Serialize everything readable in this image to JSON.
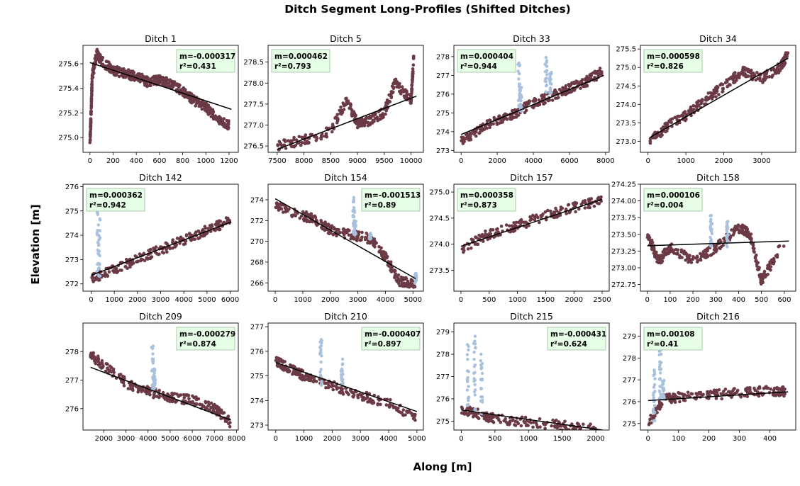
{
  "figure": {
    "title": "Ditch Segment Long-Profiles (Shifted Ditches)",
    "xlabel": "Along [m]",
    "ylabel": "Elevation [m]"
  },
  "colors": {
    "points": "#6b3a44",
    "outliers": "#a9c1dd",
    "fit": "#000000",
    "box_bg": "#e6fde6",
    "box_border": "#9bbf9b"
  },
  "chart_data": [
    {
      "type": "scatter",
      "title": "Ditch 1",
      "stats": {
        "m": "m=-0.000317",
        "r2": "r²=0.431"
      },
      "xlim": [
        -60,
        1280
      ],
      "ylim": [
        274.88,
        275.75
      ],
      "xticks": [
        0,
        200,
        400,
        600,
        800,
        1000,
        1200
      ],
      "yticks": [
        275.0,
        275.2,
        275.4,
        275.6
      ],
      "fit": [
        [
          0,
          275.61
        ],
        [
          1220,
          275.23
        ]
      ],
      "series": [
        [
          [
            0,
            274.95
          ],
          [
            10,
            275.2
          ],
          [
            20,
            275.5
          ],
          [
            60,
            275.68
          ],
          [
            100,
            275.62
          ],
          [
            200,
            275.55
          ],
          [
            300,
            275.52
          ],
          [
            400,
            275.5
          ],
          [
            500,
            275.45
          ],
          [
            600,
            275.47
          ],
          [
            700,
            275.44
          ],
          [
            800,
            275.38
          ],
          [
            900,
            275.3
          ],
          [
            1000,
            275.25
          ],
          [
            1100,
            275.15
          ],
          [
            1200,
            275.1
          ]
        ]
      ],
      "outliers": []
    },
    {
      "type": "scatter",
      "title": "Ditch 5",
      "stats": {
        "m": "m=0.000462",
        "r2": "r²=0.793"
      },
      "xlim": [
        7330,
        10230
      ],
      "ylim": [
        276.35,
        278.9
      ],
      "xticks": [
        7500,
        8000,
        8500,
        9000,
        9500,
        10000
      ],
      "yticks": [
        276.5,
        277.0,
        277.5,
        278.0,
        278.5
      ],
      "fit": [
        [
          7500,
          276.42
        ],
        [
          10100,
          277.69
        ]
      ],
      "series": [
        [
          [
            7500,
            276.5
          ],
          [
            8000,
            276.65
          ],
          [
            8500,
            276.85
          ],
          [
            8800,
            277.6
          ],
          [
            9000,
            277.05
          ],
          [
            9200,
            277.1
          ],
          [
            9500,
            277.3
          ],
          [
            9700,
            278.0
          ],
          [
            10000,
            277.6
          ],
          [
            10050,
            278.6
          ]
        ]
      ],
      "outliers": []
    },
    {
      "type": "scatter",
      "title": "Ditch 33",
      "stats": {
        "m": "m=0.000404",
        "r2": "r²=0.944"
      },
      "xlim": [
        -400,
        8200
      ],
      "ylim": [
        272.9,
        278.6
      ],
      "xticks": [
        0,
        2000,
        4000,
        6000,
        8000
      ],
      "yticks": [
        273,
        274,
        275,
        276,
        277,
        278
      ],
      "fit": [
        [
          0,
          273.85
        ],
        [
          7900,
          277.0
        ]
      ],
      "series": [
        [
          [
            0,
            273.5
          ],
          [
            1000,
            274.1
          ],
          [
            2000,
            274.6
          ],
          [
            3000,
            275.0
          ],
          [
            4000,
            275.5
          ],
          [
            5000,
            275.9
          ],
          [
            6000,
            276.3
          ],
          [
            7000,
            276.7
          ],
          [
            7800,
            277.2
          ]
        ]
      ],
      "outliers": [
        [
          3200,
          278.0
        ],
        [
          3300,
          276.5
        ],
        [
          4700,
          278.0
        ],
        [
          4950,
          277.2
        ]
      ]
    },
    {
      "type": "scatter",
      "title": "Ditch 34",
      "stats": {
        "m": "m=0.000598",
        "r2": "r²=0.826"
      },
      "xlim": [
        -200,
        3900
      ],
      "ylim": [
        272.7,
        275.6
      ],
      "xticks": [
        0,
        1000,
        2000,
        3000
      ],
      "yticks": [
        273.0,
        273.5,
        274.0,
        274.5,
        275.0,
        275.5
      ],
      "fit": [
        [
          50,
          273.1
        ],
        [
          3700,
          275.25
        ]
      ],
      "series": [
        [
          [
            50,
            273.0
          ],
          [
            500,
            273.4
          ],
          [
            1000,
            273.7
          ],
          [
            1500,
            274.1
          ],
          [
            2000,
            274.5
          ],
          [
            2500,
            274.9
          ],
          [
            3000,
            274.7
          ],
          [
            3500,
            275.0
          ],
          [
            3700,
            275.4
          ]
        ]
      ],
      "outliers": []
    },
    {
      "type": "scatter",
      "title": "Ditch 142",
      "stats": {
        "m": "m=0.000362",
        "r2": "r²=0.942"
      },
      "xlim": [
        -350,
        6350
      ],
      "ylim": [
        271.7,
        276.1
      ],
      "xticks": [
        0,
        1000,
        2000,
        3000,
        4000,
        5000,
        6000
      ],
      "yticks": [
        272,
        273,
        274,
        275,
        276
      ],
      "fit": [
        [
          0,
          272.35
        ],
        [
          6050,
          274.55
        ]
      ],
      "series": [
        [
          [
            0,
            272.2
          ],
          [
            1000,
            272.6
          ],
          [
            2000,
            273.0
          ],
          [
            3000,
            273.4
          ],
          [
            4000,
            273.8
          ],
          [
            5000,
            274.2
          ],
          [
            6000,
            274.6
          ]
        ]
      ],
      "outliers": [
        [
          300,
          275.5
        ],
        [
          350,
          274.8
        ]
      ]
    },
    {
      "type": "scatter",
      "title": "Ditch 154",
      "stats": {
        "m": "m=-0.001513",
        "r2": "r²=0.89"
      },
      "xlim": [
        -260,
        5380
      ],
      "ylim": [
        265.2,
        275.5
      ],
      "xticks": [
        0,
        1000,
        2000,
        3000,
        4000,
        5000
      ],
      "yticks": [
        266,
        268,
        270,
        272,
        274
      ],
      "fit": [
        [
          0,
          274.1
        ],
        [
          5100,
          266.4
        ]
      ],
      "series": [
        [
          [
            0,
            273.4
          ],
          [
            1000,
            272.5
          ],
          [
            1500,
            272.0
          ],
          [
            2000,
            271.1
          ],
          [
            2800,
            270.6
          ],
          [
            3500,
            270.2
          ],
          [
            4000,
            268.5
          ],
          [
            4500,
            266.2
          ],
          [
            5100,
            265.9
          ]
        ]
      ],
      "outliers": [
        [
          2850,
          274.5
        ],
        [
          2900,
          272.0
        ],
        [
          3450,
          270.8
        ],
        [
          5100,
          267.0
        ]
      ]
    },
    {
      "type": "scatter",
      "title": "Ditch 157",
      "stats": {
        "m": "m=0.000358",
        "r2": "r²=0.873"
      },
      "xlim": [
        -125,
        2625
      ],
      "ylim": [
        273.1,
        275.15
      ],
      "xticks": [
        0,
        500,
        1000,
        1500,
        2000,
        2500
      ],
      "yticks": [
        273.5,
        274.0,
        274.5,
        275.0
      ],
      "fit": [
        [
          0,
          273.96
        ],
        [
          2500,
          274.86
        ]
      ],
      "series": [
        [
          [
            0,
            273.9
          ],
          [
            500,
            274.2
          ],
          [
            1000,
            274.35
          ],
          [
            1500,
            274.55
          ],
          [
            2000,
            274.7
          ],
          [
            2500,
            274.85
          ]
        ]
      ],
      "outliers": []
    },
    {
      "type": "scatter",
      "title": "Ditch 158",
      "stats": {
        "m": "m=0.000106",
        "r2": "r²=0.004"
      },
      "xlim": [
        -30,
        650
      ],
      "ylim": [
        272.65,
        274.25
      ],
      "xticks": [
        0,
        100,
        200,
        300,
        400,
        500,
        600
      ],
      "yticks": [
        272.75,
        273.0,
        273.25,
        273.5,
        273.75,
        274.0,
        274.25
      ],
      "fit": [
        [
          0,
          273.33
        ],
        [
          620,
          273.4
        ]
      ],
      "series": [
        [
          [
            0,
            273.5
          ],
          [
            50,
            273.1
          ],
          [
            100,
            273.3
          ],
          [
            200,
            273.1
          ],
          [
            300,
            273.3
          ],
          [
            400,
            273.6
          ],
          [
            450,
            273.5
          ],
          [
            500,
            272.8
          ],
          [
            600,
            273.4
          ]
        ]
      ],
      "outliers": [
        [
          280,
          273.8
        ],
        [
          350,
          273.7
        ]
      ]
    },
    {
      "type": "scatter",
      "title": "Ditch 209",
      "stats": {
        "m": "m=-0.000279",
        "r2": "r²=0.874"
      },
      "xlim": [
        1060,
        8080
      ],
      "ylim": [
        275.25,
        279.0
      ],
      "xticks": [
        2000,
        3000,
        4000,
        5000,
        6000,
        7000,
        8000
      ],
      "yticks": [
        276,
        277,
        278
      ],
      "fit": [
        [
          1400,
          277.45
        ],
        [
          7750,
          275.6
        ]
      ],
      "series": [
        [
          [
            1400,
            277.9
          ],
          [
            2000,
            277.5
          ],
          [
            3000,
            276.9
          ],
          [
            4000,
            276.6
          ],
          [
            5000,
            276.4
          ],
          [
            6000,
            276.3
          ],
          [
            7000,
            276.0
          ],
          [
            7750,
            275.5
          ]
        ]
      ],
      "outliers": [
        [
          4200,
          278.2
        ],
        [
          4300,
          277.4
        ]
      ]
    },
    {
      "type": "scatter",
      "title": "Ditch 210",
      "stats": {
        "m": "m=-0.000407",
        "r2": "r²=0.897"
      },
      "xlim": [
        -270,
        5230
      ],
      "ylim": [
        272.8,
        277.15
      ],
      "xticks": [
        0,
        1000,
        2000,
        3000,
        4000,
        5000
      ],
      "yticks": [
        273,
        274,
        275,
        276,
        277
      ],
      "fit": [
        [
          0,
          275.55
        ],
        [
          5000,
          273.55
        ]
      ],
      "series": [
        [
          [
            0,
            275.6
          ],
          [
            500,
            275.3
          ],
          [
            1000,
            275.0
          ],
          [
            2000,
            274.6
          ],
          [
            3000,
            274.2
          ],
          [
            4000,
            273.9
          ],
          [
            5000,
            273.3
          ]
        ]
      ],
      "outliers": [
        [
          1600,
          276.5
        ],
        [
          2350,
          275.8
        ]
      ]
    },
    {
      "type": "scatter",
      "title": "Ditch 215",
      "stats": {
        "m": "m=-0.000431",
        "r2": "r²=0.624"
      },
      "xlim": [
        -110,
        2200
      ],
      "ylim": [
        274.6,
        279.4
      ],
      "xticks": [
        0,
        500,
        1000,
        1500,
        2000
      ],
      "yticks": [
        275,
        276,
        277,
        278,
        279
      ],
      "fit": [
        [
          0,
          275.5
        ],
        [
          2100,
          274.6
        ]
      ],
      "series": [
        [
          [
            0,
            275.5
          ],
          [
            300,
            275.3
          ],
          [
            500,
            275.1
          ],
          [
            1000,
            274.95
          ],
          [
            1500,
            274.8
          ],
          [
            2000,
            274.7
          ]
        ]
      ],
      "outliers": [
        [
          100,
          278.5
        ],
        [
          200,
          279.0
        ],
        [
          300,
          278.0
        ]
      ]
    },
    {
      "type": "scatter",
      "title": "Ditch 216",
      "stats": {
        "m": "m=0.00108",
        "r2": "r²=0.41"
      },
      "xlim": [
        -25,
        485
      ],
      "ylim": [
        274.7,
        279.6
      ],
      "xticks": [
        0,
        100,
        200,
        300,
        400
      ],
      "yticks": [
        275,
        276,
        277,
        278,
        279
      ],
      "fit": [
        [
          0,
          276.05
        ],
        [
          460,
          276.45
        ]
      ],
      "series": [
        [
          [
            0,
            275.0
          ],
          [
            50,
            276.1
          ],
          [
            100,
            276.2
          ],
          [
            200,
            276.3
          ],
          [
            300,
            276.4
          ],
          [
            400,
            276.5
          ],
          [
            450,
            276.45
          ]
        ]
      ],
      "outliers": [
        [
          20,
          277.5
        ],
        [
          40,
          279.0
        ],
        [
          50,
          277.0
        ]
      ]
    }
  ]
}
